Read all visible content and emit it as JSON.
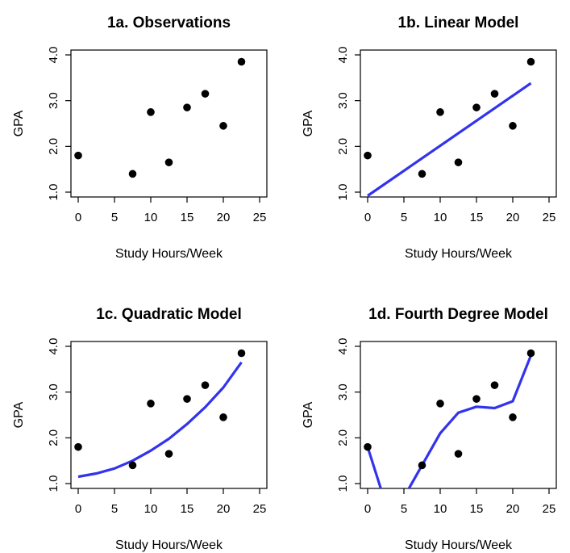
{
  "chart_data": [
    {
      "type": "scatter",
      "title": "1a. Observations",
      "xlabel": "Study Hours/Week",
      "ylabel": "GPA",
      "xlim": [
        0,
        25
      ],
      "ylim": [
        1.0,
        4.0
      ],
      "x_ticks": [
        "0",
        "5",
        "10",
        "15",
        "20",
        "25"
      ],
      "y_ticks": [
        "1.0",
        "2.0",
        "3.0",
        "4.0"
      ],
      "points": {
        "x": [
          0,
          7.5,
          10,
          12.5,
          15,
          17.5,
          20,
          22.5
        ],
        "y": [
          1.8,
          1.4,
          2.75,
          1.65,
          2.85,
          3.15,
          2.45,
          3.85
        ]
      },
      "fit": null,
      "grid": false,
      "colors": {
        "points": "#000000"
      }
    },
    {
      "type": "scatter",
      "title": "1b. Linear Model",
      "xlabel": "Study Hours/Week",
      "ylabel": "GPA",
      "xlim": [
        0,
        25
      ],
      "ylim": [
        1.0,
        4.0
      ],
      "x_ticks": [
        "0",
        "5",
        "10",
        "15",
        "20",
        "25"
      ],
      "y_ticks": [
        "1.0",
        "2.0",
        "3.0",
        "4.0"
      ],
      "points": {
        "x": [
          0,
          7.5,
          10,
          12.5,
          15,
          17.5,
          20,
          22.5
        ],
        "y": [
          1.8,
          1.4,
          2.75,
          1.65,
          2.85,
          3.15,
          2.45,
          3.85
        ]
      },
      "fit": {
        "x": [
          0,
          22.5
        ],
        "y": [
          0.92,
          3.38
        ]
      },
      "grid": false,
      "colors": {
        "points": "#000000",
        "fit": "#3333ee"
      }
    },
    {
      "type": "scatter",
      "title": "1c. Quadratic Model",
      "xlabel": "Study Hours/Week",
      "ylabel": "GPA",
      "xlim": [
        0,
        25
      ],
      "ylim": [
        1.0,
        4.0
      ],
      "x_ticks": [
        "0",
        "5",
        "10",
        "15",
        "20",
        "25"
      ],
      "y_ticks": [
        "1.0",
        "2.0",
        "3.0",
        "4.0"
      ],
      "points": {
        "x": [
          0,
          7.5,
          10,
          12.5,
          15,
          17.5,
          20,
          22.5
        ],
        "y": [
          1.8,
          1.4,
          2.75,
          1.65,
          2.85,
          3.15,
          2.45,
          3.85
        ]
      },
      "fit": {
        "x": [
          0,
          2.5,
          5,
          7.5,
          10,
          12.5,
          15,
          17.5,
          20,
          22.5
        ],
        "y": [
          1.15,
          1.22,
          1.33,
          1.5,
          1.72,
          1.98,
          2.3,
          2.67,
          3.1,
          3.65
        ]
      },
      "grid": false,
      "colors": {
        "points": "#000000",
        "fit": "#3333ee"
      }
    },
    {
      "type": "scatter",
      "title": "1d. Fourth Degree Model",
      "xlabel": "Study Hours/Week",
      "ylabel": "GPA",
      "xlim": [
        0,
        25
      ],
      "ylim": [
        1.0,
        4.0
      ],
      "x_ticks": [
        "0",
        "5",
        "10",
        "15",
        "20",
        "25"
      ],
      "y_ticks": [
        "1.0",
        "2.0",
        "3.0",
        "4.0"
      ],
      "points": {
        "x": [
          0,
          7.5,
          10,
          12.5,
          15,
          17.5,
          20,
          22.5
        ],
        "y": [
          1.8,
          1.4,
          2.75,
          1.65,
          2.85,
          3.15,
          2.45,
          3.85
        ]
      },
      "fit": {
        "x": [
          0,
          2.5,
          5,
          7.5,
          10,
          12.5,
          15,
          17.5,
          20,
          22.5
        ],
        "y": [
          1.8,
          0.55,
          0.7,
          1.4,
          2.1,
          2.55,
          2.68,
          2.65,
          2.8,
          3.8
        ]
      },
      "grid": false,
      "colors": {
        "points": "#000000",
        "fit": "#3333ee"
      }
    }
  ]
}
